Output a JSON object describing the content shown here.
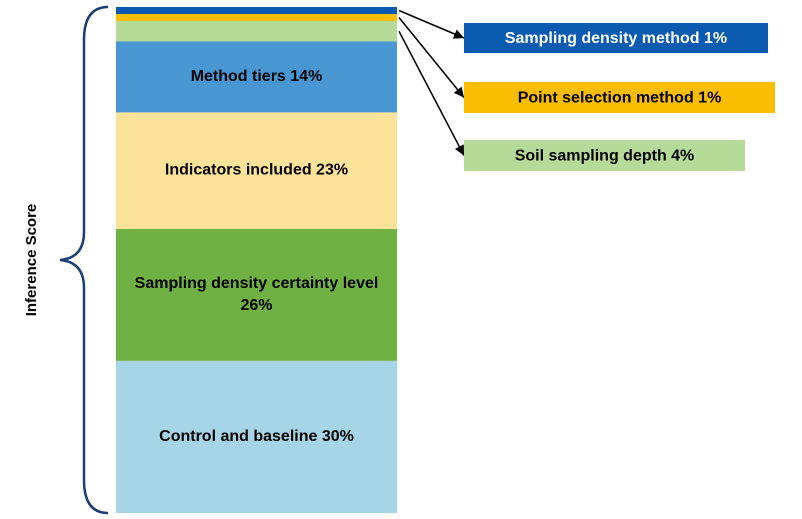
{
  "chart_data": {
    "type": "bar",
    "subtype": "stacked-single-column",
    "axis_label": "Inference Score",
    "unit": "%",
    "segments": [
      {
        "label": "Sampling density method",
        "value": 1,
        "color": "#0b5cb0",
        "callout": true
      },
      {
        "label": "Point selection method",
        "value": 1,
        "color": "#fbbd00",
        "callout": true
      },
      {
        "label": "Soil sampling depth",
        "value": 4,
        "color": "#b6da98",
        "callout": true
      },
      {
        "label": "Method tiers",
        "value": 14,
        "color": "#4896d2",
        "callout": false
      },
      {
        "label": "Indicators included",
        "value": 23,
        "color": "#fde399",
        "callout": false
      },
      {
        "label": "Sampling density certainty level",
        "value": 26,
        "color": "#6fb142",
        "callout": false
      },
      {
        "label": "Control and baseline",
        "value": 30,
        "color": "#a6d5e8",
        "callout": false
      }
    ]
  }
}
